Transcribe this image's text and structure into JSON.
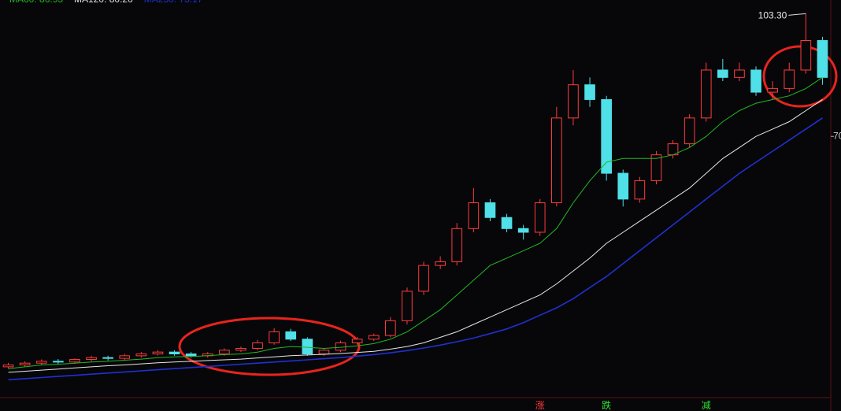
{
  "chart_data": {
    "type": "candlestick",
    "open": [
      7.5,
      8,
      8.5,
      9,
      8.8,
      9.5,
      10,
      9.8,
      10.5,
      11,
      11.5,
      11,
      10.5,
      11,
      12,
      12.5,
      14,
      17,
      15,
      11,
      12,
      14,
      15,
      16,
      20,
      28,
      35,
      36,
      45,
      52,
      48,
      45,
      44,
      52,
      75,
      84,
      80,
      60,
      53,
      58,
      65,
      68,
      75,
      88,
      86,
      88,
      82,
      83,
      88,
      96
    ],
    "high": [
      8.6,
      9,
      9.5,
      9.6,
      9.8,
      10.5,
      10.5,
      11,
      11.5,
      12,
      12,
      11.5,
      11.5,
      12.5,
      13,
      14.8,
      18,
      17.8,
      15.5,
      12.5,
      14.6,
      15.6,
      16.5,
      21,
      29,
      36,
      37.5,
      46.5,
      56,
      53,
      49,
      46,
      53,
      78,
      88,
      86,
      81,
      61,
      59,
      66,
      69,
      76,
      90,
      91,
      90,
      89,
      85,
      90,
      103.3,
      97
    ],
    "low": [
      7,
      7.6,
      8,
      8.2,
      8.3,
      9,
      9.2,
      9.3,
      10,
      10.6,
      10.5,
      10,
      10,
      10.5,
      11.5,
      12,
      13.5,
      14.5,
      10.5,
      10.5,
      11.5,
      13.5,
      14.5,
      15.5,
      19,
      27,
      34,
      35,
      44,
      47,
      44,
      42,
      43,
      51,
      73,
      78,
      58,
      51,
      52,
      57,
      64,
      67,
      74,
      85,
      85,
      81,
      80,
      82,
      87,
      84
    ],
    "close": [
      8,
      8.5,
      9,
      8.8,
      9.5,
      10,
      9.8,
      10.5,
      11,
      11.5,
      11,
      10.5,
      11,
      12,
      12.5,
      14,
      17,
      15,
      11,
      12,
      14,
      15,
      16,
      20,
      28,
      35,
      36,
      45,
      52,
      48,
      45,
      44,
      52,
      75,
      84,
      80,
      60,
      53,
      58,
      65,
      68,
      75,
      88,
      86,
      88,
      82,
      83,
      88,
      96,
      86
    ],
    "up_color": "#ff3b3b",
    "down_color": "#4fe0e8",
    "series": [
      {
        "name": "MA60: 86.93",
        "color": "#22b822",
        "values": [
          7,
          7.5,
          8,
          8.2,
          8.5,
          8.8,
          9,
          9.3,
          9.6,
          10,
          10.2,
          10.3,
          10.5,
          10.8,
          11,
          11.5,
          12.5,
          13,
          12.8,
          12.5,
          12.8,
          13.2,
          13.8,
          15,
          17,
          20,
          23,
          27,
          31,
          35,
          37,
          39,
          41,
          45,
          52,
          58,
          63,
          64,
          64,
          64,
          65,
          67,
          70,
          74,
          77,
          79,
          80,
          81,
          83,
          86
        ]
      },
      {
        "name": "MA120: 80.20",
        "color": "#e6e6e6",
        "values": [
          6,
          6.3,
          6.6,
          6.9,
          7.2,
          7.5,
          7.8,
          8,
          8.3,
          8.6,
          8.8,
          9,
          9.2,
          9.4,
          9.6,
          9.9,
          10.2,
          10.5,
          10.7,
          10.9,
          11.1,
          11.4,
          11.7,
          12.3,
          13,
          14,
          15.5,
          17,
          19,
          21,
          23,
          25,
          27,
          30,
          33.5,
          37,
          41,
          44,
          47,
          50,
          53,
          56,
          60,
          64,
          67,
          70,
          72,
          74,
          77,
          80
        ]
      },
      {
        "name": "MA250: 73.17",
        "color": "#2030d0",
        "values": [
          4,
          4.3,
          4.6,
          4.9,
          5.2,
          5.5,
          5.8,
          6.1,
          6.4,
          6.7,
          7,
          7.3,
          7.6,
          7.9,
          8.2,
          8.5,
          8.8,
          9.1,
          9.4,
          9.7,
          10,
          10.4,
          10.8,
          11.3,
          11.9,
          12.6,
          13.4,
          14.3,
          15.3,
          16.5,
          17.8,
          19.5,
          21.5,
          23.5,
          26,
          29,
          32,
          35.5,
          39,
          42.5,
          46,
          49.5,
          53,
          56.5,
          60,
          63,
          66,
          69,
          72,
          75
        ]
      }
    ],
    "ylim": [
      0,
      107
    ],
    "yticks": [
      70
    ],
    "high_label": "103.30",
    "events": [
      {
        "label": "涨",
        "index": 32,
        "color": "#ff3b3b"
      },
      {
        "label": "跌",
        "index": 36,
        "color": "#2ee02e"
      },
      {
        "label": "减",
        "index": 42,
        "color": "#2ee02e"
      }
    ]
  }
}
